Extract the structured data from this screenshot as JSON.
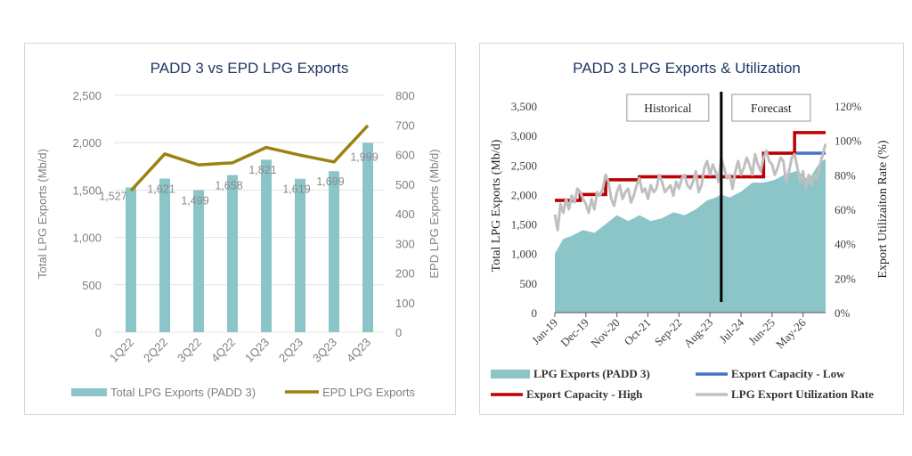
{
  "colors": {
    "bar": "#8bc5c8",
    "epd_line": "#9c8210",
    "area": "#8bc5c8",
    "cap_low": "#4472c4",
    "cap_high": "#c00000",
    "util": "#bfbfbf",
    "title": "#1f3864"
  },
  "chart_data": [
    {
      "type": "bar",
      "title": "PADD 3 vs EPD LPG Exports",
      "categories": [
        "1Q22",
        "2Q22",
        "3Q22",
        "4Q22",
        "1Q23",
        "2Q23",
        "3Q23",
        "4Q23"
      ],
      "series": [
        {
          "name": "Total LPG Exports (PADD 3)",
          "type": "bar",
          "axis": "left",
          "values": [
            1527,
            1621,
            1499,
            1658,
            1821,
            1619,
            1699,
            1999
          ]
        },
        {
          "name": "EPD LPG Exports",
          "type": "line",
          "axis": "right",
          "values": [
            478,
            602,
            565,
            572,
            624,
            598,
            575,
            698
          ]
        }
      ],
      "data_labels": [
        "1,527",
        "1,621",
        "1,499",
        "1,658",
        "1,821",
        "1,619",
        "1,699",
        "1,999"
      ],
      "ylabel": "Total LPG Exports (Mb/d)",
      "y2label": "EPD LPG Exports (Mb/d)",
      "ylim": [
        0,
        2500
      ],
      "y2lim": [
        0,
        800
      ],
      "yticks": [
        "0",
        "500",
        "1,000",
        "1,500",
        "2,000",
        "2,500"
      ],
      "y2ticks": [
        "0",
        "100",
        "200",
        "300",
        "400",
        "500",
        "600",
        "700",
        "800"
      ],
      "legend": "bottom",
      "grid": true
    },
    {
      "type": "area",
      "title": "PADD 3 LPG Exports & Utilization",
      "x_ticks": [
        "Jan-19",
        "Dec-19",
        "Nov-20",
        "Oct-21",
        "Sep-22",
        "Aug-23",
        "Jul-24",
        "Jun-25",
        "May-26"
      ],
      "x_tick_index": [
        0,
        11,
        22,
        33,
        44,
        55,
        66,
        77,
        88
      ],
      "n_months": 97,
      "ylabel": "Total LPG Exports (Mb/d)",
      "y2label": "Export Utilizaiton Rate (%)",
      "ylim": [
        0,
        3500
      ],
      "y2lim": [
        0,
        120
      ],
      "yticks": [
        "0",
        "500",
        "1,000",
        "1,500",
        "2,000",
        "2,500",
        "3,000",
        "3,500"
      ],
      "y2ticks": [
        "0%",
        "20%",
        "40%",
        "60%",
        "80%",
        "100%",
        "120%"
      ],
      "annotations": {
        "historical": "Historical",
        "forecast": "Forecast",
        "divider_index": 59
      },
      "series": [
        {
          "name": "LPG Exports (PADD 3)",
          "type": "area",
          "axis": "left",
          "points": [
            [
              0,
              1000
            ],
            [
              3,
              1250
            ],
            [
              6,
              1300
            ],
            [
              10,
              1400
            ],
            [
              14,
              1350
            ],
            [
              18,
              1500
            ],
            [
              22,
              1650
            ],
            [
              26,
              1550
            ],
            [
              30,
              1650
            ],
            [
              34,
              1550
            ],
            [
              38,
              1600
            ],
            [
              42,
              1700
            ],
            [
              46,
              1650
            ],
            [
              50,
              1750
            ],
            [
              54,
              1900
            ],
            [
              57,
              1950
            ],
            [
              59,
              2000
            ],
            [
              62,
              1950
            ],
            [
              66,
              2050
            ],
            [
              70,
              2200
            ],
            [
              74,
              2200
            ],
            [
              78,
              2250
            ],
            [
              82,
              2350
            ],
            [
              86,
              2400
            ],
            [
              90,
              2250
            ],
            [
              94,
              2550
            ],
            [
              96,
              2600
            ]
          ]
        },
        {
          "name": "Export Capacity - Low",
          "type": "line",
          "axis": "left",
          "points": [
            [
              0,
              1900
            ],
            [
              9,
              1900
            ],
            [
              9,
              2000
            ],
            [
              18,
              2000
            ],
            [
              18,
              2250
            ],
            [
              30,
              2250
            ],
            [
              30,
              2300
            ],
            [
              40,
              2300
            ],
            [
              40,
              2300
            ],
            [
              58,
              2300
            ],
            [
              58,
              2300
            ],
            [
              74,
              2300
            ],
            [
              74,
              2700
            ],
            [
              96,
              2700
            ]
          ]
        },
        {
          "name": "Export Capacity - High",
          "type": "line",
          "axis": "left",
          "points": [
            [
              0,
              1900
            ],
            [
              9,
              1900
            ],
            [
              9,
              2000
            ],
            [
              18,
              2000
            ],
            [
              18,
              2250
            ],
            [
              30,
              2250
            ],
            [
              30,
              2300
            ],
            [
              58,
              2300
            ],
            [
              74,
              2300
            ],
            [
              74,
              2700
            ],
            [
              85,
              2700
            ],
            [
              85,
              3050
            ],
            [
              96,
              3050
            ]
          ]
        },
        {
          "name": "LPG Export Utilization Rate",
          "type": "line",
          "axis": "right",
          "points": [
            [
              0,
              57
            ],
            [
              1,
              48
            ],
            [
              2,
              63
            ],
            [
              3,
              58
            ],
            [
              4,
              66
            ],
            [
              5,
              60
            ],
            [
              6,
              68
            ],
            [
              7,
              64
            ],
            [
              8,
              72
            ],
            [
              9,
              70
            ],
            [
              10,
              66
            ],
            [
              11,
              63
            ],
            [
              12,
              58
            ],
            [
              13,
              66
            ],
            [
              14,
              60
            ],
            [
              15,
              70
            ],
            [
              16,
              68
            ],
            [
              17,
              72
            ],
            [
              18,
              80
            ],
            [
              19,
              76
            ],
            [
              20,
              66
            ],
            [
              21,
              62
            ],
            [
              22,
              70
            ],
            [
              23,
              74
            ],
            [
              24,
              66
            ],
            [
              25,
              70
            ],
            [
              26,
              72
            ],
            [
              27,
              64
            ],
            [
              28,
              68
            ],
            [
              29,
              74
            ],
            [
              30,
              78
            ],
            [
              31,
              70
            ],
            [
              32,
              72
            ],
            [
              33,
              66
            ],
            [
              34,
              74
            ],
            [
              35,
              70
            ],
            [
              36,
              72
            ],
            [
              37,
              80
            ],
            [
              38,
              76
            ],
            [
              39,
              70
            ],
            [
              40,
              72
            ],
            [
              41,
              74
            ],
            [
              42,
              68
            ],
            [
              43,
              76
            ],
            [
              44,
              72
            ],
            [
              45,
              78
            ],
            [
              46,
              80
            ],
            [
              47,
              74
            ],
            [
              48,
              72
            ],
            [
              49,
              76
            ],
            [
              50,
              82
            ],
            [
              51,
              70
            ],
            [
              52,
              74
            ],
            [
              53,
              84
            ],
            [
              54,
              88
            ],
            [
              55,
              80
            ],
            [
              56,
              86
            ],
            [
              57,
              82
            ],
            [
              58,
              76
            ],
            [
              59,
              90
            ],
            [
              60,
              84
            ],
            [
              61,
              78
            ],
            [
              62,
              80
            ],
            [
              63,
              72
            ],
            [
              64,
              82
            ],
            [
              65,
              88
            ],
            [
              66,
              80
            ],
            [
              67,
              84
            ],
            [
              68,
              90
            ],
            [
              69,
              86
            ],
            [
              70,
              80
            ],
            [
              71,
              92
            ],
            [
              72,
              86
            ],
            [
              73,
              82
            ],
            [
              74,
              90
            ],
            [
              75,
              94
            ],
            [
              76,
              88
            ],
            [
              77,
              86
            ],
            [
              78,
              80
            ],
            [
              79,
              84
            ],
            [
              80,
              90
            ],
            [
              81,
              88
            ],
            [
              82,
              76
            ],
            [
              83,
              82
            ],
            [
              84,
              90
            ],
            [
              85,
              92
            ],
            [
              86,
              84
            ],
            [
              87,
              76
            ],
            [
              88,
              82
            ],
            [
              89,
              72
            ],
            [
              90,
              80
            ],
            [
              91,
              74
            ],
            [
              92,
              80
            ],
            [
              93,
              78
            ],
            [
              94,
              86
            ],
            [
              95,
              92
            ],
            [
              96,
              98
            ]
          ]
        }
      ],
      "legend": "bottom",
      "grid": false
    }
  ]
}
